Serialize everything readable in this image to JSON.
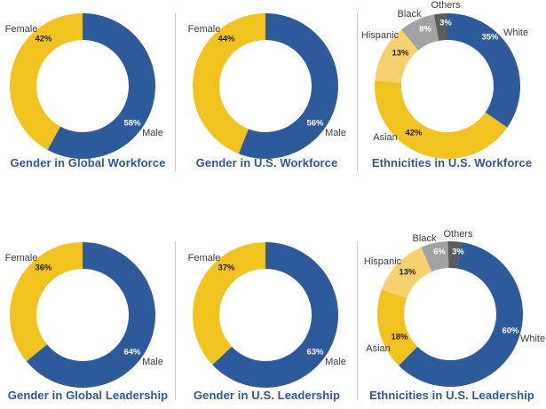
{
  "styles": {
    "background": "#FFFFFF",
    "title_color": "#2B579A",
    "label_color": "#3C3C3C",
    "divider_color": "#CBCBCB",
    "palette": {
      "blue": "#2D5A9A",
      "gold": "#F0C31F",
      "light_gold": "#F5D26D",
      "gray": "#A2A2A2",
      "dark_gray": "#5C5C5C"
    }
  },
  "chart_data": [
    {
      "type": "donut",
      "title": "Gender in Global Workforce",
      "start_angle_deg": 0,
      "direction": "clockwise",
      "slices": [
        {
          "label": "Male",
          "value": 58,
          "pct_label": "58%",
          "color": "#2D5A9A",
          "pct_text_color": "#FFFFFF"
        },
        {
          "label": "Female",
          "value": 42,
          "pct_label": "42%",
          "color": "#F0C31F",
          "pct_text_color": "#1F1F1F"
        }
      ]
    },
    {
      "type": "donut",
      "title": "Gender in U.S. Workforce",
      "start_angle_deg": 0,
      "direction": "clockwise",
      "slices": [
        {
          "label": "Male",
          "value": 56,
          "pct_label": "56%",
          "color": "#2D5A9A",
          "pct_text_color": "#FFFFFF"
        },
        {
          "label": "Female",
          "value": 44,
          "pct_label": "44%",
          "color": "#F0C31F",
          "pct_text_color": "#1F1F1F"
        }
      ]
    },
    {
      "type": "donut",
      "title": "Ethnicities in U.S. Workforce",
      "start_angle_deg": 0,
      "direction": "clockwise",
      "slices": [
        {
          "label": "White",
          "value": 35,
          "pct_label": "35%",
          "color": "#2D5A9A",
          "pct_text_color": "#FFFFFF"
        },
        {
          "label": "Asian",
          "value": 42,
          "pct_label": "42%",
          "color": "#F0C31F",
          "pct_text_color": "#1F1F1F"
        },
        {
          "label": "Hispanic",
          "value": 13,
          "pct_label": "13%",
          "color": "#F5D26D",
          "pct_text_color": "#1F1F1F"
        },
        {
          "label": "Black",
          "value": 8,
          "pct_label": "8%",
          "color": "#A2A2A2",
          "pct_text_color": "#FFFFFF"
        },
        {
          "label": "Others",
          "value": 3,
          "pct_label": "3%",
          "color": "#5C5C5C",
          "pct_text_color": "#FFFFFF"
        }
      ]
    },
    {
      "type": "donut",
      "title": "Gender in Global Leadership",
      "start_angle_deg": 0,
      "direction": "clockwise",
      "slices": [
        {
          "label": "Male",
          "value": 64,
          "pct_label": "64%",
          "color": "#2D5A9A",
          "pct_text_color": "#FFFFFF"
        },
        {
          "label": "Female",
          "value": 36,
          "pct_label": "36%",
          "color": "#F0C31F",
          "pct_text_color": "#1F1F1F"
        }
      ]
    },
    {
      "type": "donut",
      "title": "Gender in U.S. Leadership",
      "start_angle_deg": 0,
      "direction": "clockwise",
      "slices": [
        {
          "label": "Male",
          "value": 63,
          "pct_label": "63%",
          "color": "#2D5A9A",
          "pct_text_color": "#FFFFFF"
        },
        {
          "label": "Female",
          "value": 37,
          "pct_label": "37%",
          "color": "#F0C31F",
          "pct_text_color": "#1F1F1F"
        }
      ]
    },
    {
      "type": "donut",
      "title": "Ethnicities in U.S. Leadership",
      "start_angle_deg": 9,
      "direction": "clockwise",
      "slices": [
        {
          "label": "White",
          "value": 60,
          "pct_label": "60%",
          "color": "#2D5A9A",
          "pct_text_color": "#FFFFFF"
        },
        {
          "label": "Asian",
          "value": 18,
          "pct_label": "18%",
          "color": "#F0C31F",
          "pct_text_color": "#1F1F1F"
        },
        {
          "label": "Hispanic",
          "value": 13,
          "pct_label": "13%",
          "color": "#F5D26D",
          "pct_text_color": "#1F1F1F"
        },
        {
          "label": "Black",
          "value": 6,
          "pct_label": "6%",
          "color": "#A2A2A2",
          "pct_text_color": "#FFFFFF"
        },
        {
          "label": "Others",
          "value": 3,
          "pct_label": "3%",
          "color": "#5C5C5C",
          "pct_text_color": "#FFFFFF"
        }
      ]
    }
  ]
}
